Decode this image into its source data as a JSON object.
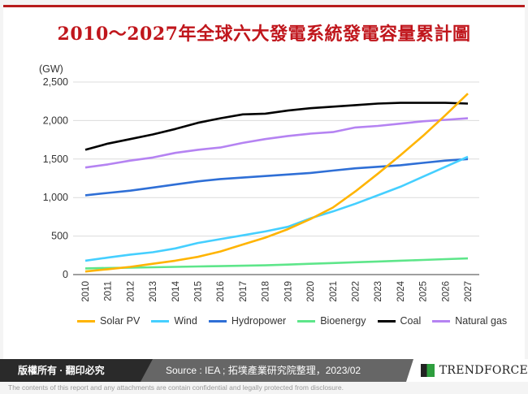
{
  "title": "2010～2027年全球六大發電系統發電容量累計圖",
  "chart_data": {
    "type": "line",
    "title": "2010～2027年全球六大發電系統發電容量累計圖",
    "ylabel": "(GW)",
    "ylim": [
      0,
      2500
    ],
    "yticks": [
      "0",
      "500",
      "1,000",
      "1,500",
      "2,000",
      "2,500"
    ],
    "ytick_values": [
      0,
      500,
      1000,
      1500,
      2000,
      2500
    ],
    "grid": true,
    "legend": "bottom",
    "categories": [
      "2010",
      "2011",
      "2012",
      "2013",
      "2014",
      "2015",
      "2016",
      "2017",
      "2018",
      "2019",
      "2020",
      "2021",
      "2022",
      "2023",
      "2024",
      "2025",
      "2026",
      "2027"
    ],
    "series": [
      {
        "name": "Solar PV",
        "color": "#ffb400",
        "values": [
          40,
          70,
          100,
          140,
          180,
          230,
          300,
          390,
          480,
          590,
          720,
          870,
          1080,
          1310,
          1550,
          1800,
          2070,
          2350
        ]
      },
      {
        "name": "Wind",
        "color": "#45cfff",
        "values": [
          180,
          220,
          260,
          290,
          340,
          410,
          460,
          510,
          560,
          620,
          730,
          820,
          920,
          1030,
          1140,
          1270,
          1400,
          1530
        ]
      },
      {
        "name": "Hydropower",
        "color": "#2f6fd6",
        "values": [
          1030,
          1060,
          1090,
          1130,
          1170,
          1210,
          1240,
          1260,
          1280,
          1300,
          1320,
          1350,
          1380,
          1400,
          1420,
          1450,
          1480,
          1500
        ]
      },
      {
        "name": "Bioenergy",
        "color": "#5ee68a",
        "values": [
          80,
          85,
          90,
          95,
          100,
          105,
          110,
          115,
          120,
          130,
          140,
          150,
          160,
          170,
          180,
          190,
          200,
          210
        ]
      },
      {
        "name": "Coal",
        "color": "#000000",
        "values": [
          1620,
          1700,
          1760,
          1820,
          1890,
          1970,
          2030,
          2080,
          2090,
          2130,
          2160,
          2180,
          2200,
          2220,
          2230,
          2230,
          2230,
          2220
        ]
      },
      {
        "name": "Natural gas",
        "color": "#b583f2",
        "values": [
          1390,
          1430,
          1480,
          1520,
          1580,
          1620,
          1650,
          1710,
          1760,
          1800,
          1830,
          1850,
          1910,
          1930,
          1960,
          1990,
          2010,
          2030
        ]
      }
    ]
  },
  "footer": {
    "copyright": "版權所有 · 翻印必究",
    "source": "Source : IEA ; 拓墣產業研究院整理，2023/02",
    "logo": "TRENDFORCE",
    "disclaimer": "The contents of this report and any attachments are contain confidential and legally protected from disclosure."
  }
}
